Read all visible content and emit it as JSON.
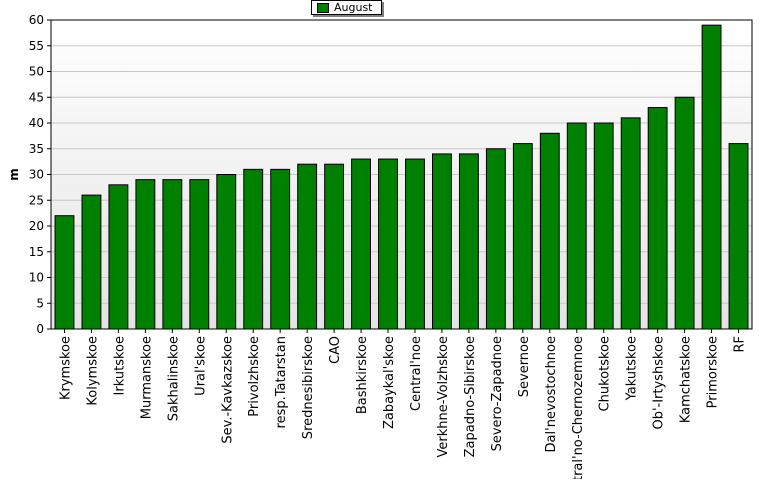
{
  "chart_data": {
    "type": "bar",
    "legend": {
      "label": "August",
      "placement": "top-center"
    },
    "ylabel": "m",
    "xlabel": "",
    "ylim": [
      0,
      60
    ],
    "ytick_step": 5,
    "grid": true,
    "colors": {
      "bar": "#008000",
      "bar_stroke": "#000000",
      "plot_bg_top": "#ffffff",
      "plot_bg_bottom": "#e4e4e4",
      "grid": "#c8c8c8"
    },
    "categories": [
      "Krymskoe",
      "Kolymskoe",
      "Irkutskoe",
      "Murmanskoe",
      "Sakhalinskoe",
      "Ural'skoe",
      "Sev.-Kavkazskoe",
      "Privolzhskoe",
      "resp.Tatarstan",
      "Srednesibirskoe",
      "CAO",
      "Bashkirskoe",
      "Zabaykal'skoe",
      "Central'noe",
      "Verkhne-Volzhskoe",
      "Zapadno-Sibirskoe",
      "Severo-Zapadnoe",
      "Severnoe",
      "Dal'nevostochnoe",
      "Central'no-Chernozemnoe",
      "Chukotskoe",
      "Yakutskoe",
      "Ob'-Irtyshskoe",
      "Kamchatskoe",
      "Primorskoe",
      "RF"
    ],
    "values": [
      22,
      26,
      28,
      29,
      29,
      29,
      30,
      31,
      31,
      32,
      32,
      33,
      33,
      33,
      34,
      34,
      35,
      36,
      38,
      40,
      40,
      41,
      43,
      45,
      59,
      36
    ]
  }
}
